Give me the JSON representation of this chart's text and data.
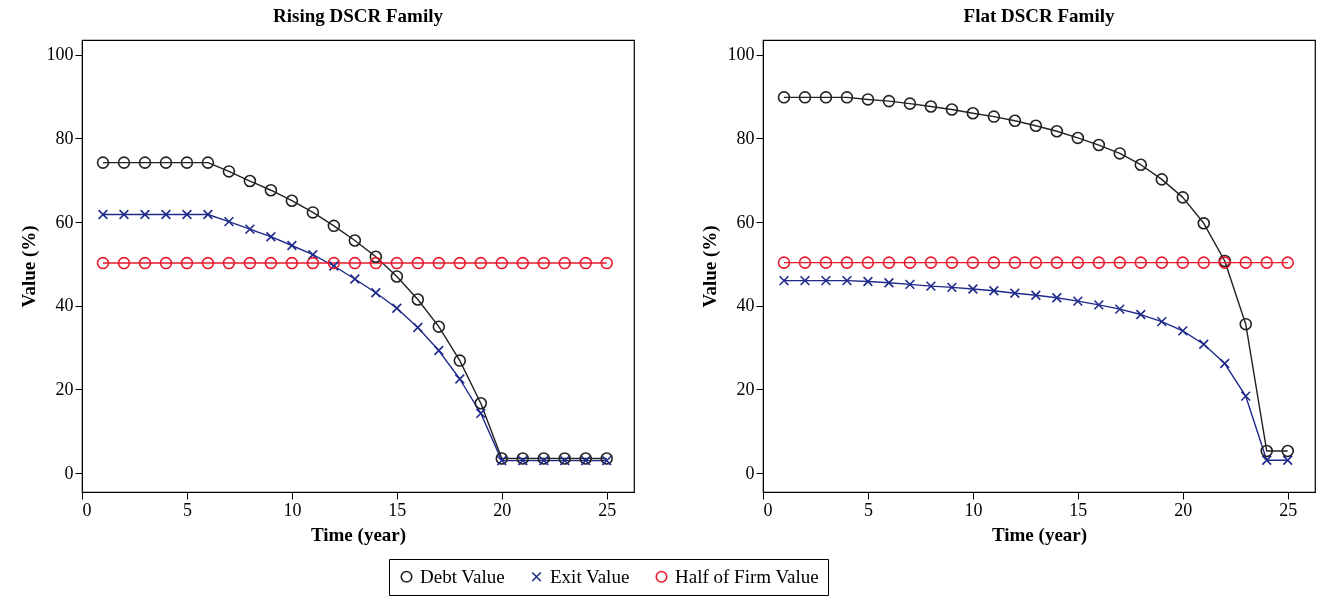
{
  "chart_data": [
    {
      "type": "line",
      "title": "Rising DSCR Family",
      "xlabel": "Time (year)",
      "ylabel": "Value (%)",
      "xlim": [
        0,
        26.3
      ],
      "ylim": [
        -4.5,
        103.5
      ],
      "xticks": [
        0,
        5,
        10,
        15,
        20,
        25
      ],
      "yticks": [
        0,
        20,
        40,
        60,
        80,
        100
      ],
      "grid": false,
      "legend": "bottom",
      "x": [
        1,
        2,
        3,
        4,
        5,
        6,
        7,
        8,
        9,
        10,
        11,
        12,
        13,
        14,
        15,
        16,
        17,
        18,
        19,
        20,
        21,
        22,
        23,
        24,
        25
      ],
      "series": [
        {
          "name": "Debt Value",
          "color": "#222222",
          "marker": "circle",
          "values": [
            74.2,
            74.2,
            74.2,
            74.2,
            74.2,
            74.2,
            72.1,
            69.8,
            67.6,
            65.1,
            62.3,
            59.1,
            55.6,
            51.7,
            47.0,
            41.5,
            35.0,
            26.9,
            16.7,
            3.5,
            3.5,
            3.5,
            3.5,
            3.5,
            3.5
          ]
        },
        {
          "name": "Exit Value",
          "color": "#1f2a8a",
          "marker": "cross",
          "values": [
            61.8,
            61.8,
            61.8,
            61.8,
            61.8,
            61.8,
            60.1,
            58.3,
            56.5,
            54.4,
            52.2,
            49.5,
            46.4,
            43.1,
            39.4,
            34.8,
            29.3,
            22.5,
            14.3,
            3,
            3,
            3,
            3,
            3,
            3
          ]
        },
        {
          "name": "Half of Firm Value",
          "color": "#e8192c",
          "marker": "circle",
          "values": [
            50.2,
            50.2,
            50.2,
            50.2,
            50.2,
            50.2,
            50.2,
            50.2,
            50.2,
            50.2,
            50.2,
            50.2,
            50.2,
            50.2,
            50.2,
            50.2,
            50.2,
            50.2,
            50.2,
            50.2,
            50.2,
            50.2,
            50.2,
            50.2,
            50.2
          ]
        }
      ]
    },
    {
      "type": "line",
      "title": "Flat DSCR Family",
      "xlabel": "Time (year)",
      "ylabel": "Value (%)",
      "xlim": [
        0,
        26.3
      ],
      "ylim": [
        -4.5,
        103.5
      ],
      "xticks": [
        0,
        5,
        10,
        15,
        20,
        25
      ],
      "yticks": [
        0,
        20,
        40,
        60,
        80,
        100
      ],
      "grid": false,
      "legend": "bottom",
      "x": [
        1,
        2,
        3,
        4,
        5,
        6,
        7,
        8,
        9,
        10,
        11,
        12,
        13,
        14,
        15,
        16,
        17,
        18,
        19,
        20,
        21,
        22,
        23,
        24,
        25
      ],
      "series": [
        {
          "name": "Debt Value",
          "color": "#222222",
          "marker": "circle",
          "values": [
            89.8,
            89.8,
            89.8,
            89.8,
            89.3,
            88.9,
            88.3,
            87.6,
            86.9,
            86.0,
            85.2,
            84.2,
            83.0,
            81.7,
            80.1,
            78.4,
            76.4,
            73.7,
            70.2,
            65.9,
            59.7,
            50.7,
            35.6,
            5.3,
            5.3
          ]
        },
        {
          "name": "Exit Value",
          "color": "#1f2a8a",
          "marker": "cross",
          "values": [
            46.0,
            46.0,
            46.0,
            46.0,
            45.8,
            45.5,
            45.1,
            44.7,
            44.4,
            44.0,
            43.6,
            43.0,
            42.5,
            41.9,
            41.1,
            40.2,
            39.2,
            37.9,
            36.2,
            34.0,
            30.8,
            26.2,
            18.4,
            3.1,
            3.1
          ]
        },
        {
          "name": "Half of Firm Value",
          "color": "#e8192c",
          "marker": "circle",
          "values": [
            50.3,
            50.3,
            50.3,
            50.3,
            50.3,
            50.3,
            50.3,
            50.3,
            50.3,
            50.3,
            50.3,
            50.3,
            50.3,
            50.3,
            50.3,
            50.3,
            50.3,
            50.3,
            50.3,
            50.3,
            50.3,
            50.3,
            50.3,
            50.3,
            50.3
          ]
        }
      ]
    }
  ]
}
